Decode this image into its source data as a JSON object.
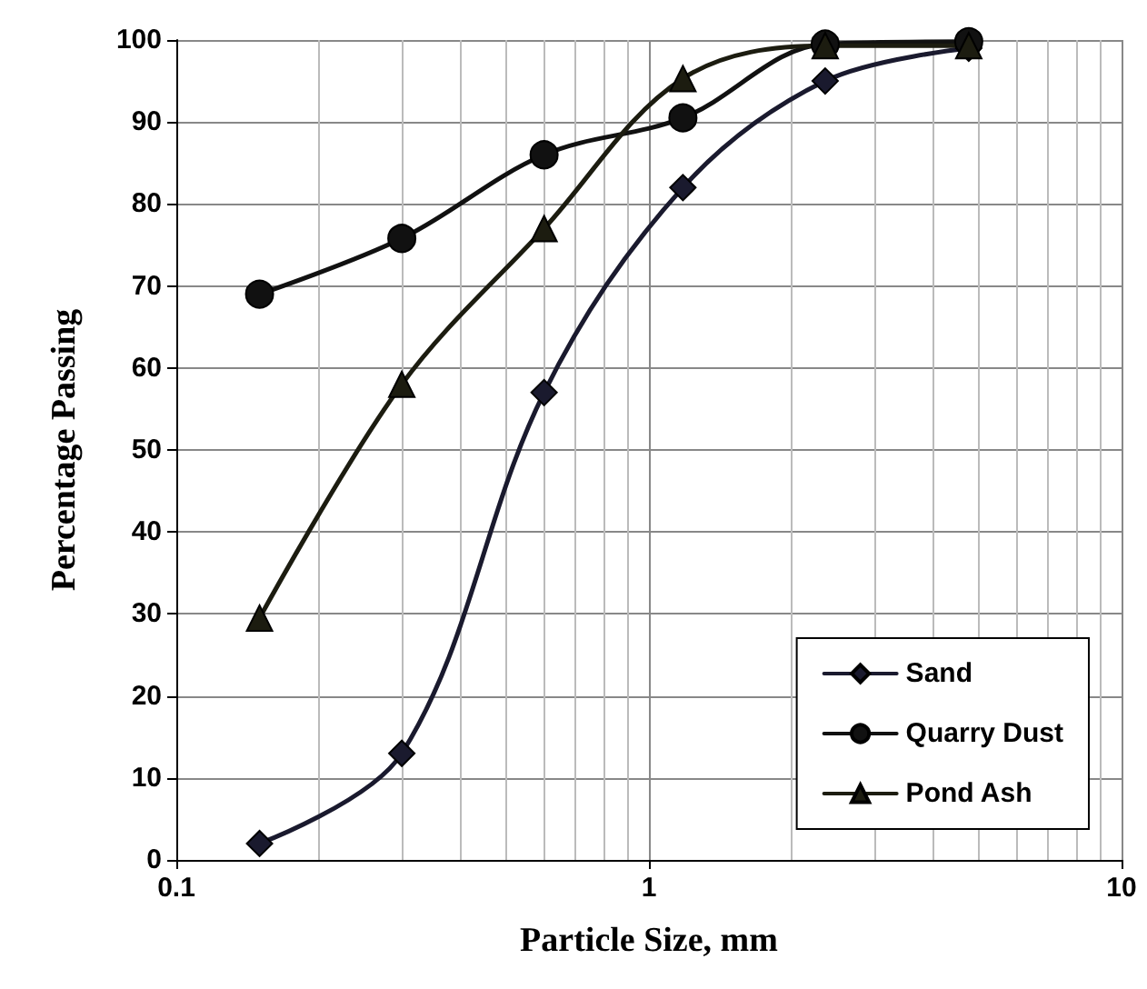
{
  "chart_data": {
    "type": "line",
    "xlabel": "Particle Size, mm",
    "ylabel": "Percentage Passing",
    "log": "x",
    "xlim": [
      0.1,
      10
    ],
    "xticks": [
      0.1,
      1,
      10
    ],
    "ylim": [
      0,
      100
    ],
    "yticks": [
      0,
      10,
      20,
      30,
      40,
      50,
      60,
      70,
      80,
      90,
      100
    ],
    "grid": true,
    "legend": "bottom right",
    "line_style": "solid",
    "x": [
      0.15,
      0.3,
      0.6,
      1.18,
      2.36,
      4.75
    ],
    "series": [
      {
        "name": "Sand",
        "color": "#1a1a2e",
        "marker": "diamond",
        "values": [
          2,
          13,
          57,
          82,
          95,
          99
        ]
      },
      {
        "name": "Quarry Dust",
        "color": "#111111",
        "marker": "circle",
        "values": [
          69,
          75.8,
          86,
          90.5,
          99.5,
          99.8
        ]
      },
      {
        "name": "Pond Ash",
        "color": "#1c1c10",
        "marker": "triangle",
        "values": [
          29.5,
          58,
          77,
          95.3,
          99.3,
          99.3
        ]
      }
    ]
  }
}
